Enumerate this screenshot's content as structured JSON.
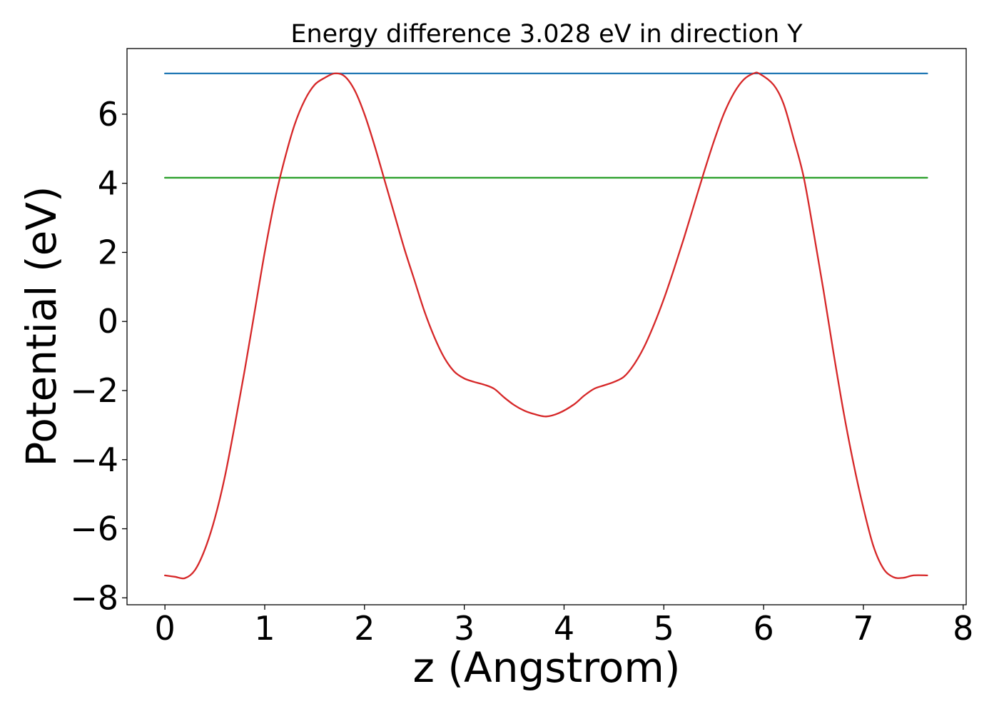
{
  "chart_data": {
    "type": "line",
    "title": "Energy difference 3.028 eV in direction Y",
    "xlabel": "z (Angstrom)",
    "ylabel": "Potential (eV)",
    "xlim": [
      -0.38,
      8.03
    ],
    "ylim": [
      -8.2,
      7.9
    ],
    "x_ticks": [
      0,
      1,
      2,
      3,
      4,
      5,
      6,
      7,
      8
    ],
    "x_tick_labels": [
      "0",
      "1",
      "2",
      "3",
      "4",
      "5",
      "6",
      "7",
      "8"
    ],
    "y_ticks": [
      -8,
      -6,
      -4,
      -2,
      0,
      2,
      4,
      6
    ],
    "y_tick_labels": [
      "−8",
      "−6",
      "−4",
      "−2",
      "0",
      "2",
      "4",
      "6"
    ],
    "grid": false,
    "series": [
      {
        "color": "#1f77b4",
        "x": [
          0,
          7.64
        ],
        "y": [
          7.18,
          7.18
        ]
      },
      {
        "color": "#2ca02c",
        "x": [
          0,
          7.64
        ],
        "y": [
          4.16,
          4.16
        ]
      },
      {
        "color": "#d62728",
        "x": [
          0,
          0.1,
          0.2,
          0.3,
          0.4,
          0.5,
          0.6,
          0.7,
          0.8,
          0.9,
          1.0,
          1.1,
          1.2,
          1.3,
          1.4,
          1.5,
          1.6,
          1.7,
          1.8,
          1.9,
          2.0,
          2.1,
          2.2,
          2.3,
          2.4,
          2.5,
          2.6,
          2.7,
          2.8,
          2.9,
          3.0,
          3.1,
          3.2,
          3.3,
          3.4,
          3.5,
          3.6,
          3.7,
          3.82,
          3.95,
          4.1,
          4.2,
          4.3,
          4.4,
          4.5,
          4.6,
          4.7,
          4.8,
          4.9,
          5.0,
          5.1,
          5.2,
          5.3,
          5.4,
          5.5,
          5.6,
          5.7,
          5.8,
          5.9,
          5.96,
          6.1,
          6.2,
          6.3,
          6.4,
          6.5,
          6.6,
          6.7,
          6.8,
          6.9,
          7.0,
          7.1,
          7.2,
          7.3,
          7.4,
          7.5,
          7.64
        ],
        "y": [
          -7.35,
          -7.39,
          -7.43,
          -7.2,
          -6.6,
          -5.7,
          -4.5,
          -3.0,
          -1.4,
          0.3,
          2.0,
          3.5,
          4.7,
          5.7,
          6.4,
          6.85,
          7.05,
          7.18,
          7.1,
          6.7,
          6.0,
          5.1,
          4.1,
          3.1,
          2.1,
          1.2,
          0.3,
          -0.45,
          -1.05,
          -1.45,
          -1.65,
          -1.75,
          -1.83,
          -1.95,
          -2.2,
          -2.42,
          -2.58,
          -2.68,
          -2.75,
          -2.65,
          -2.4,
          -2.15,
          -1.95,
          -1.85,
          -1.75,
          -1.6,
          -1.25,
          -0.75,
          -0.1,
          0.65,
          1.5,
          2.4,
          3.35,
          4.3,
          5.2,
          6.0,
          6.6,
          7.0,
          7.18,
          7.17,
          6.85,
          6.3,
          5.3,
          4.2,
          2.6,
          0.9,
          -0.9,
          -2.6,
          -4.1,
          -5.4,
          -6.5,
          -7.15,
          -7.4,
          -7.42,
          -7.35,
          -7.35
        ]
      }
    ]
  }
}
